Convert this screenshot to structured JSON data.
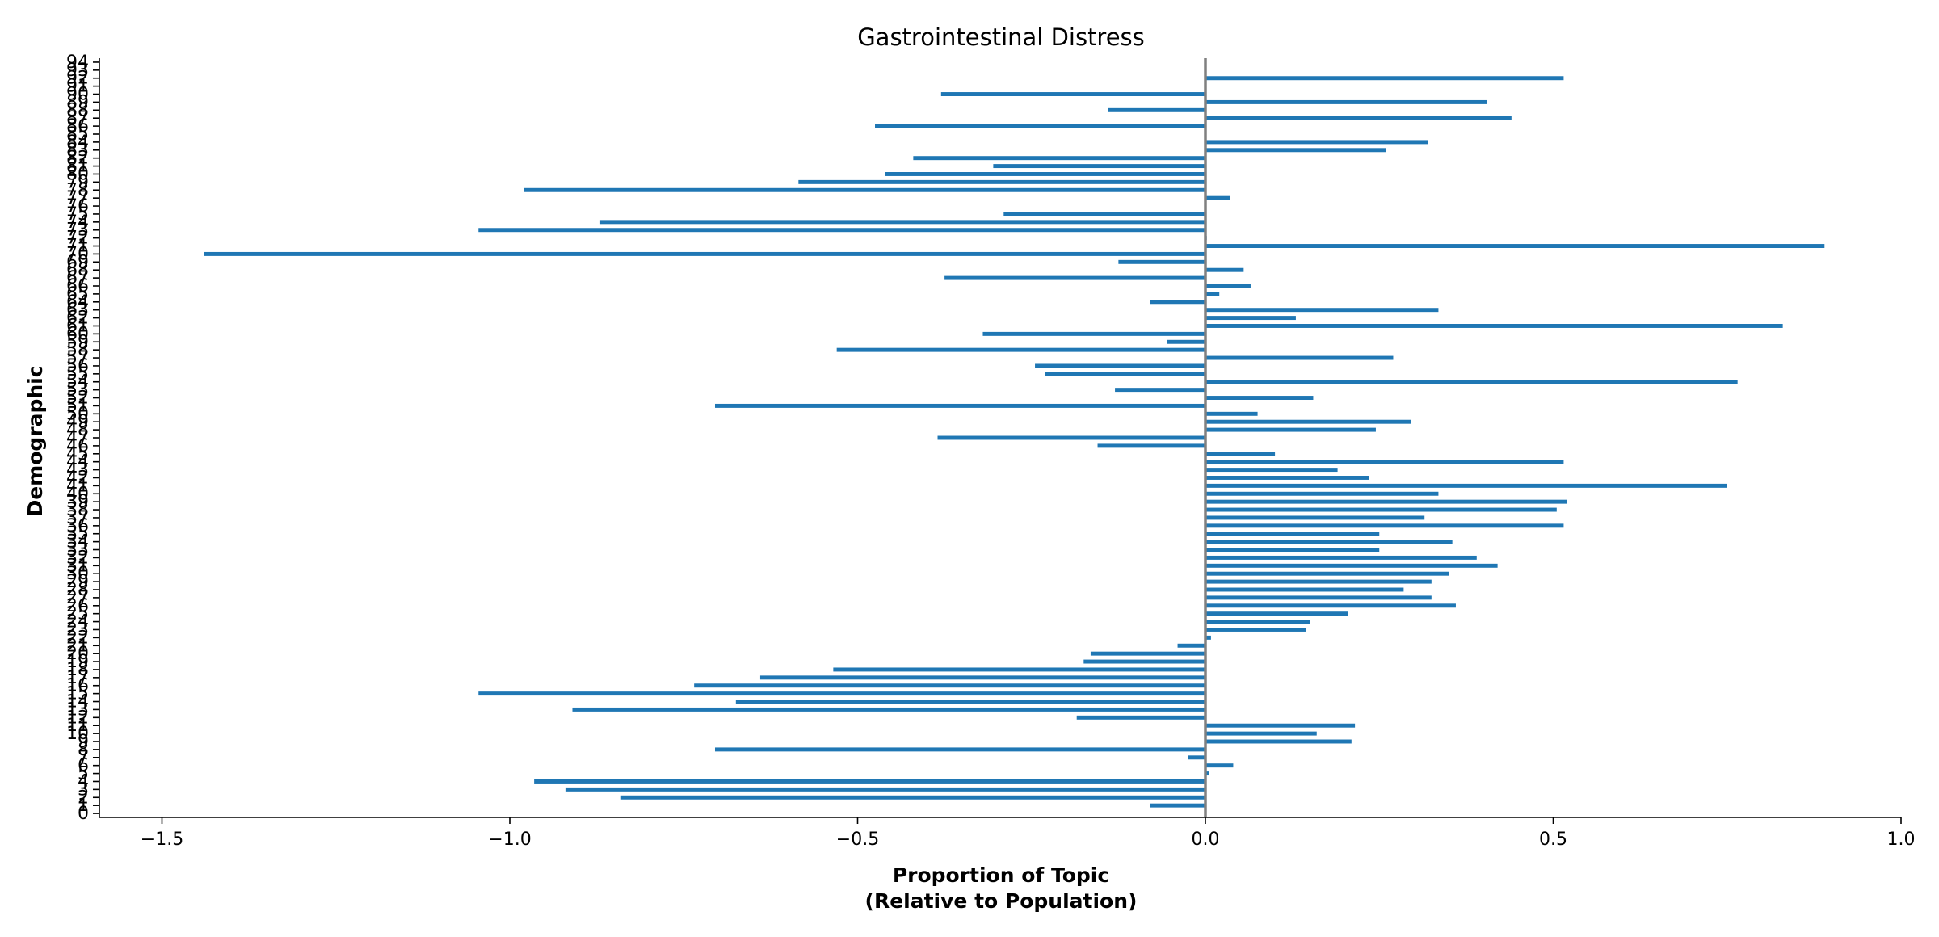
{
  "chart_data": {
    "type": "bar",
    "orientation": "horizontal",
    "title": "Gastrointestinal Distress",
    "xlabel_line1": "Proportion of Topic",
    "xlabel_line2": "(Relative to Population)",
    "ylabel": "Demographic",
    "xlim": [
      -1.59,
      1.0
    ],
    "ylim": [
      -0.5,
      94.5
    ],
    "xticks": [
      -1.5,
      -1.0,
      -0.5,
      0.0,
      0.5,
      1.0
    ],
    "xtick_labels": [
      "−1.5",
      "−1.0",
      "−0.5",
      "0.0",
      "0.5",
      "1.0"
    ],
    "bar_color": "#1f77b4",
    "zero_line_color": "#808080",
    "grid": false,
    "categories": [
      "0",
      "1",
      "2",
      "3",
      "4",
      "5",
      "6",
      "7",
      "8",
      "9",
      "10",
      "11",
      "12",
      "13",
      "14",
      "15",
      "16",
      "17",
      "18",
      "19",
      "20",
      "21",
      "22",
      "23",
      "24",
      "25",
      "26",
      "27",
      "28",
      "29",
      "30",
      "31",
      "32",
      "33",
      "34",
      "35",
      "36",
      "37",
      "38",
      "39",
      "40",
      "41",
      "42",
      "43",
      "44",
      "45",
      "46",
      "47",
      "48",
      "49",
      "50",
      "51",
      "52",
      "53",
      "54",
      "55",
      "56",
      "57",
      "58",
      "59",
      "60",
      "61",
      "62",
      "63",
      "64",
      "65",
      "66",
      "67",
      "68",
      "69",
      "70",
      "71",
      "72",
      "73",
      "74",
      "75",
      "76",
      "77",
      "78",
      "79",
      "80",
      "81",
      "82",
      "83",
      "84",
      "85",
      "86",
      "87",
      "88",
      "89",
      "90",
      "91",
      "92",
      "93",
      "94"
    ],
    "values": [
      0,
      -0.08,
      -0.84,
      -0.92,
      -0.965,
      0.005,
      0.04,
      -0.025,
      -0.705,
      0.21,
      0.16,
      0.215,
      -0.185,
      -0.91,
      -0.675,
      -1.045,
      -0.735,
      -0.64,
      -0.535,
      -0.175,
      -0.165,
      -0.04,
      0.008,
      0.145,
      0.15,
      0.205,
      0.36,
      0.325,
      0.285,
      0.325,
      0.35,
      0.42,
      0.39,
      0.25,
      0.355,
      0.25,
      0.515,
      0.315,
      0.505,
      0.52,
      0.335,
      0.75,
      0.235,
      0.19,
      0.515,
      0.1,
      -0.155,
      -0.385,
      0.245,
      0.295,
      0.075,
      -0.705,
      0.155,
      -0.13,
      0.765,
      -0.23,
      -0.245,
      0.27,
      -0.53,
      -0.055,
      -0.32,
      0.83,
      0.13,
      0.335,
      -0.08,
      0.02,
      0.065,
      -0.375,
      0.055,
      -0.125,
      -1.44,
      0.89,
      0.002,
      -1.045,
      -0.87,
      -0.29,
      0,
      0.035,
      -0.98,
      -0.585,
      -0.46,
      -0.305,
      -0.42,
      0.26,
      0.32,
      0,
      -0.475,
      0.44,
      -0.14,
      0.405,
      -0.38,
      0,
      0.515,
      0,
      0
    ]
  }
}
